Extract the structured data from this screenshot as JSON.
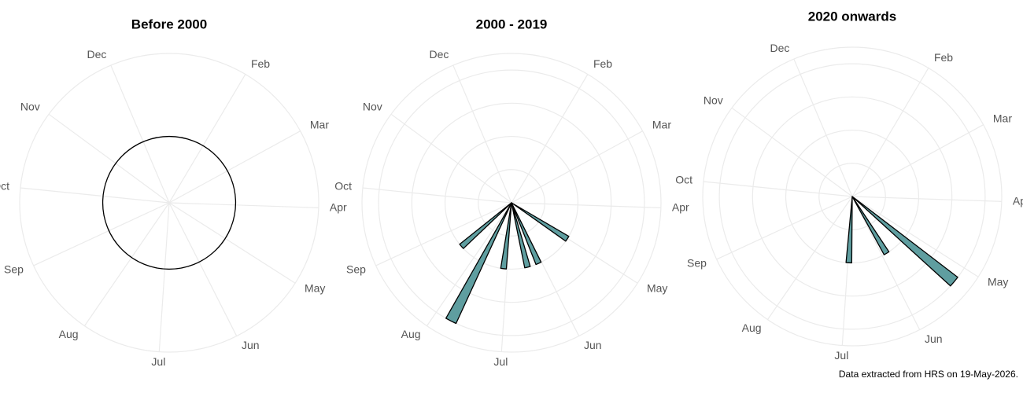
{
  "chart_data": [
    {
      "type": "polar-bar",
      "title": "Before 2000",
      "xlim": [
        1,
        12.75
      ],
      "ylim": [
        0,
        4.5
      ],
      "yticks": [],
      "xticks": [
        {
          "value": 2,
          "label": "Feb"
        },
        {
          "value": 3,
          "label": "Mar"
        },
        {
          "value": 4,
          "label": "Apr"
        },
        {
          "value": 5,
          "label": "May"
        },
        {
          "value": 6,
          "label": "Jun"
        },
        {
          "value": 7,
          "label": "Jul"
        },
        {
          "value": 8,
          "label": "Aug"
        },
        {
          "value": 9,
          "label": "Sep"
        },
        {
          "value": 10,
          "label": "Oct"
        },
        {
          "value": 11,
          "label": "Nov"
        },
        {
          "value": 12,
          "label": "Dec"
        }
      ],
      "x": [
        1
      ],
      "values": [
        2
      ],
      "bar_width": 11.75,
      "color": "#5f9ea0"
    },
    {
      "type": "polar-bar",
      "title": "2000 - 2019",
      "xlim": [
        1,
        12.75
      ],
      "ylim": [
        0,
        4.5
      ],
      "yticks": [
        1,
        2,
        3,
        4
      ],
      "xticks": [
        {
          "value": 2,
          "label": "Feb"
        },
        {
          "value": 3,
          "label": "Mar"
        },
        {
          "value": 4,
          "label": "Apr"
        },
        {
          "value": 5,
          "label": "May"
        },
        {
          "value": 6,
          "label": "Jun"
        },
        {
          "value": 7,
          "label": "Jul"
        },
        {
          "value": 8,
          "label": "Aug"
        },
        {
          "value": 9,
          "label": "Sep"
        },
        {
          "value": 10,
          "label": "Oct"
        },
        {
          "value": 11,
          "label": "Nov"
        },
        {
          "value": 12,
          "label": "Dec"
        }
      ],
      "x": [
        5.01,
        6.09,
        6.42,
        7.1,
        7.76,
        8.47
      ],
      "values": [
        2,
        2,
        2,
        2,
        4,
        2
      ],
      "bar_width": 0.16,
      "color": "#5f9ea0"
    },
    {
      "type": "polar-bar",
      "title": "2020 onwards",
      "xlim": [
        1,
        12.75
      ],
      "ylim": [
        0,
        4.5
      ],
      "yticks": [
        1,
        2,
        3,
        4
      ],
      "xticks": [
        {
          "value": 2,
          "label": "Feb"
        },
        {
          "value": 3,
          "label": "Mar"
        },
        {
          "value": 4,
          "label": "Apr"
        },
        {
          "value": 5,
          "label": "May"
        },
        {
          "value": 6,
          "label": "Jun"
        },
        {
          "value": 7,
          "label": "Jul"
        },
        {
          "value": 8,
          "label": "Aug"
        },
        {
          "value": 9,
          "label": "Sep"
        },
        {
          "value": 10,
          "label": "Oct"
        },
        {
          "value": 11,
          "label": "Nov"
        },
        {
          "value": 12,
          "label": "Dec"
        }
      ],
      "x": [
        5.24,
        5.86,
        6.97
      ],
      "values": [
        4,
        2,
        2
      ],
      "bar_width": 0.16,
      "color": "#5f9ea0"
    }
  ],
  "caption": "Data extracted from HRS on 19-May-2026."
}
